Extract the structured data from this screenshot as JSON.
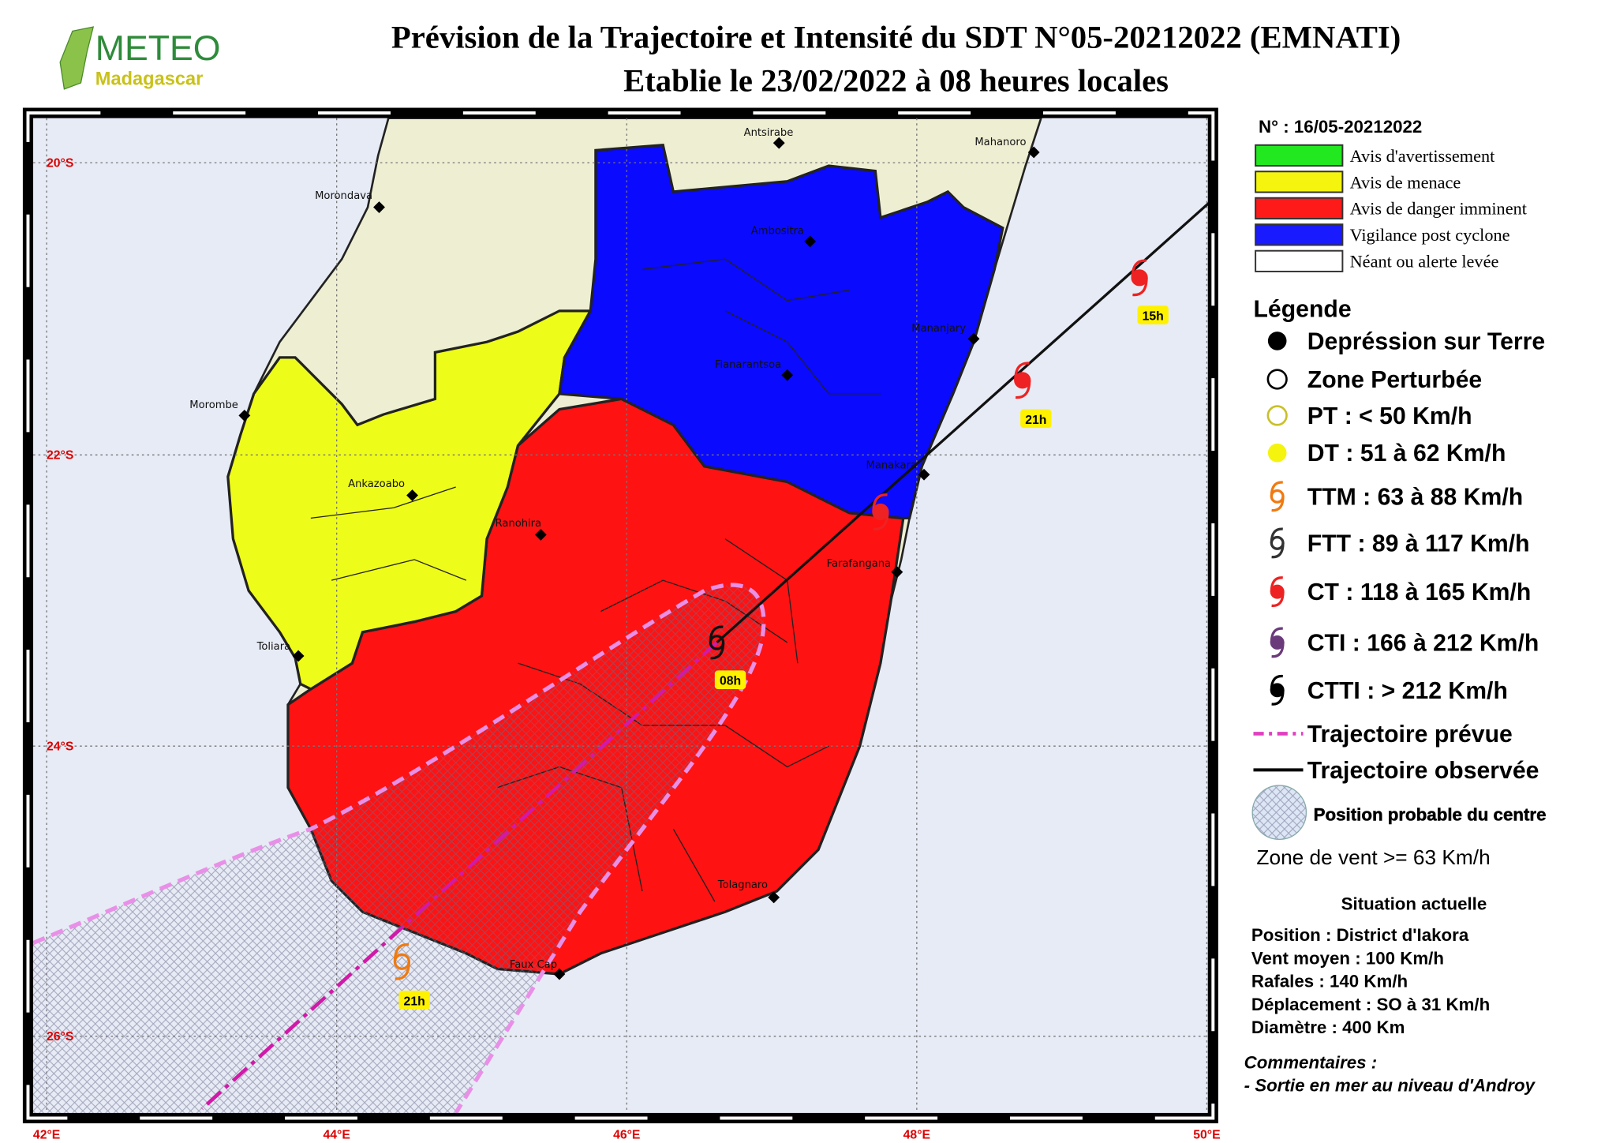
{
  "header": {
    "logo_title": "METEO",
    "logo_subtitle": "Madagascar",
    "title": "Prévision de la Trajectoire et Intensité du SDT N°05-20212022 (EMNATI)",
    "subtitle": "Etablie le 23/02/2022 à 08 heures locales"
  },
  "map": {
    "lat_labels": [
      "20°S",
      "22°S",
      "24°S",
      "26°S"
    ],
    "lon_labels": [
      "42°E",
      "44°E",
      "46°E",
      "48°E",
      "50°E"
    ],
    "cities": [
      "Antsirabe",
      "Mahanoro",
      "Morondava",
      "Ambositra",
      "Mananjary",
      "Fianarantsoa",
      "Morombe",
      "Manakara",
      "Ankazoabo",
      "Ranohira",
      "Farafangana",
      "Toliara",
      "Tolagnaro",
      "Faux Cap"
    ],
    "time_labels": [
      "15h",
      "21h",
      "08h",
      "21h"
    ]
  },
  "legend": {
    "bulletin": "N° : 16/05-20212022",
    "alerts": [
      "Avis d'avertissement",
      "Avis de menace",
      "Avis de danger imminent",
      "Vigilance post cyclone",
      "Néant ou alerte levée"
    ],
    "title": "Légende",
    "symbols": [
      "Depréssion sur Terre",
      "Zone Perturbée",
      "PT : < 50 Km/h",
      "DT : 51 à 62 Km/h",
      "TTM : 63 à 88 Km/h",
      "FTT : 89 à 117 Km/h",
      "CT : 118 à 165 Km/h",
      "CTI : 166 à 212 Km/h",
      "CTTI : > 212 Km/h"
    ],
    "tracks": [
      "Trajectoire prévue",
      "Trajectoire observée"
    ],
    "probable_position": "Position probable du centre",
    "wind_zone": "Zone de vent >= 63 Km/h"
  },
  "situation": {
    "title": "Situation actuelle",
    "lines": [
      "Position : District d'Iakora",
      "Vent moyen : 100 Km/h",
      "Rafales : 140 Km/h",
      "Déplacement : SO à 31 Km/h",
      "Diamètre : 400 Km"
    ],
    "comments_title": "Commentaires :",
    "comments": "- Sortie en mer au niveau d'Androy"
  }
}
